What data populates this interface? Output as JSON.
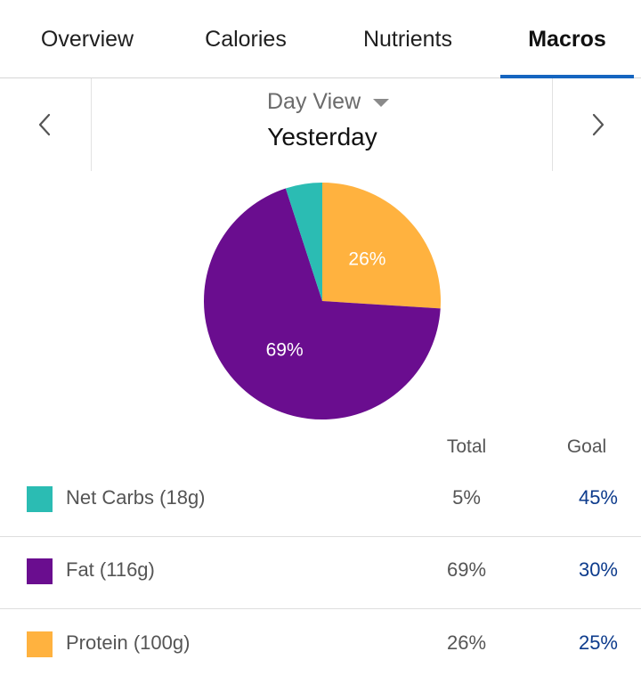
{
  "tabs": [
    {
      "label": "Overview",
      "active": false
    },
    {
      "label": "Calories",
      "active": false
    },
    {
      "label": "Nutrients",
      "active": false
    },
    {
      "label": "Macros",
      "active": true
    }
  ],
  "date_nav": {
    "view_mode": "Day View",
    "date_label": "Yesterday",
    "prev_icon": "chevron-left-icon",
    "next_icon": "chevron-right-icon"
  },
  "colors": {
    "accent": "#1565c0",
    "net_carbs": "#2bbcb3",
    "fat": "#6a0d8f",
    "protein": "#ffb23f",
    "goal_text": "#0d3b8c"
  },
  "chart_data": {
    "type": "pie",
    "slices": [
      {
        "label": "Net Carbs",
        "value": 5,
        "color": "#2bbcb3",
        "data_label": ""
      },
      {
        "label": "Fat",
        "value": 69,
        "color": "#6a0d8f",
        "data_label": "69%"
      },
      {
        "label": "Protein",
        "value": 26,
        "color": "#ffb23f",
        "data_label": "26%"
      }
    ],
    "order_clockwise_from_top": [
      "Protein",
      "Fat",
      "Net Carbs"
    ]
  },
  "table": {
    "col_total": "Total",
    "col_goal": "Goal",
    "rows": [
      {
        "name": "Net Carbs (18g)",
        "total": "5%",
        "goal": "45%",
        "color": "#2bbcb3"
      },
      {
        "name": "Fat (116g)",
        "total": "69%",
        "goal": "30%",
        "color": "#6a0d8f"
      },
      {
        "name": "Protein (100g)",
        "total": "26%",
        "goal": "25%",
        "color": "#ffb23f"
      }
    ]
  }
}
